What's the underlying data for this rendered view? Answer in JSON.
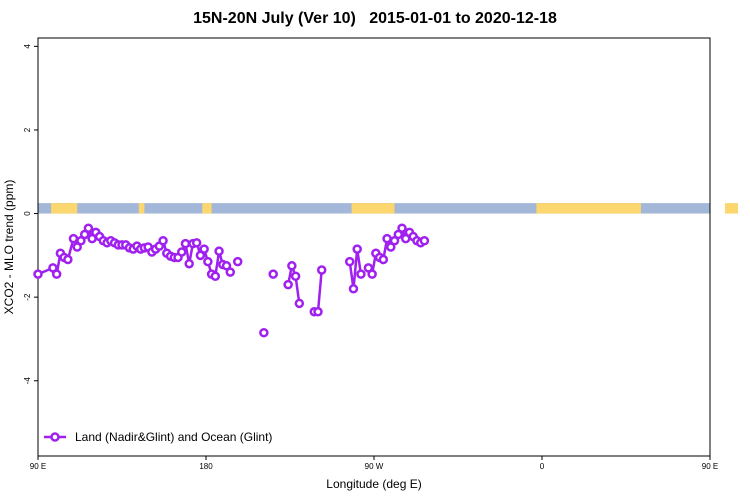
{
  "chart_data": {
    "type": "line",
    "title": "15N-20N July (Ver 10)   2015-01-01 to 2020-12-18",
    "xlabel": "Longitude (deg E)",
    "ylabel": "XCO2 - MLO trend (ppm)",
    "xlim": [
      90,
      450
    ],
    "ylim": [
      -5.8,
      4.2
    ],
    "x_ticks": [
      {
        "value": 90,
        "label": "90 E"
      },
      {
        "value": 180,
        "label": "180"
      },
      {
        "value": 270,
        "label": "90 W"
      },
      {
        "value": 360,
        "label": "0"
      },
      {
        "value": 450,
        "label": "90 E"
      },
      {
        "value": 540,
        "label": "180"
      }
    ],
    "y_ticks": [
      {
        "value": -4,
        "label": "-4"
      },
      {
        "value": -2,
        "label": "-2"
      },
      {
        "value": 0,
        "label": "0"
      },
      {
        "value": 2,
        "label": "2"
      },
      {
        "value": 4,
        "label": "4"
      }
    ],
    "grid": false,
    "legend_position": "bottom-left",
    "colors": {
      "series": "#a020f0",
      "ocean_band": "#a3b8d9",
      "land_band": "#fcd66e"
    },
    "land_band": {
      "y_range": [
        0,
        0.25
      ],
      "land_segments": [
        [
          97,
          111
        ],
        [
          144,
          147
        ],
        [
          178,
          183
        ],
        [
          258,
          281
        ],
        [
          357,
          413
        ],
        [
          458,
          465
        ],
        [
          482,
          498
        ]
      ]
    },
    "series": [
      {
        "name": "Land (Nadir&Glint) and Ocean (Glint)",
        "segments": [
          [
            [
              90,
              -1.45
            ],
            [
              98,
              -1.3
            ],
            [
              100,
              -1.45
            ],
            [
              102,
              -0.95
            ],
            [
              104,
              -1.05
            ],
            [
              106,
              -1.1
            ],
            [
              109,
              -0.6
            ],
            [
              111,
              -0.8
            ],
            [
              113,
              -0.65
            ],
            [
              115,
              -0.5
            ],
            [
              117,
              -0.35
            ],
            [
              119,
              -0.6
            ],
            [
              121,
              -0.45
            ],
            [
              123,
              -0.55
            ],
            [
              125,
              -0.65
            ],
            [
              127,
              -0.7
            ],
            [
              129,
              -0.65
            ],
            [
              131,
              -0.7
            ],
            [
              133,
              -0.75
            ],
            [
              135,
              -0.75
            ],
            [
              137,
              -0.75
            ],
            [
              139,
              -0.82
            ],
            [
              141,
              -0.85
            ],
            [
              143,
              -0.78
            ],
            [
              145,
              -0.85
            ],
            [
              147,
              -0.82
            ],
            [
              149,
              -0.8
            ],
            [
              151,
              -0.92
            ],
            [
              153,
              -0.85
            ],
            [
              155,
              -0.78
            ],
            [
              157,
              -0.65
            ],
            [
              159,
              -0.95
            ],
            [
              161,
              -1.02
            ],
            [
              163,
              -1.05
            ],
            [
              165,
              -1.05
            ],
            [
              167,
              -0.92
            ],
            [
              169,
              -0.72
            ],
            [
              171,
              -1.2
            ],
            [
              173,
              -0.72
            ],
            [
              175,
              -0.7
            ],
            [
              177,
              -1.0
            ],
            [
              179,
              -0.85
            ],
            [
              181,
              -1.15
            ],
            [
              183,
              -1.45
            ],
            [
              185,
              -1.5
            ],
            [
              187,
              -0.9
            ],
            [
              189,
              -1.22
            ],
            [
              191,
              -1.25
            ],
            [
              193,
              -1.4
            ]
          ],
          [
            [
              197,
              -1.15
            ]
          ],
          [
            [
              211,
              -2.85
            ]
          ],
          [
            [
              216,
              -1.45
            ]
          ],
          [
            [
              224,
              -1.7
            ],
            [
              226,
              -1.25
            ],
            [
              228,
              -1.5
            ],
            [
              230,
              -2.15
            ]
          ],
          [
            [
              238,
              -2.35
            ],
            [
              240,
              -2.35
            ],
            [
              242,
              -1.35
            ]
          ],
          [
            [
              257,
              -1.15
            ],
            [
              259,
              -1.8
            ],
            [
              261,
              -0.85
            ],
            [
              263,
              -1.45
            ]
          ],
          [
            [
              267,
              -1.3
            ],
            [
              269,
              -1.45
            ],
            [
              271,
              -0.95
            ],
            [
              273,
              -1.05
            ],
            [
              275,
              -1.1
            ],
            [
              277,
              -0.6
            ],
            [
              279,
              -0.8
            ],
            [
              281,
              -0.65
            ],
            [
              283,
              -0.5
            ],
            [
              285,
              -0.35
            ],
            [
              287,
              -0.6
            ],
            [
              289,
              -0.45
            ],
            [
              291,
              -0.55
            ],
            [
              293,
              -0.65
            ],
            [
              295,
              -0.7
            ],
            [
              297,
              -0.65
            ]
          ]
        ]
      }
    ]
  }
}
